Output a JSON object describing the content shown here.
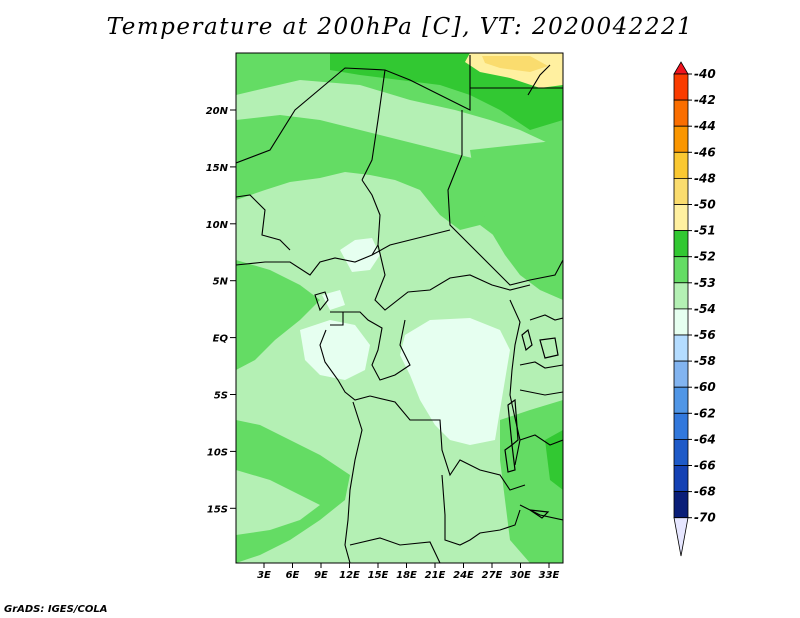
{
  "title": "Temperature at 200hPa [C], VT: 2020042221",
  "credit": "GrADS: IGES/COLA",
  "map": {
    "lat_labels": [
      "20N",
      "15N",
      "10N",
      "5N",
      "EQ",
      "5S",
      "10S",
      "15S"
    ],
    "lon_labels": [
      "3E",
      "6E",
      "9E",
      "12E",
      "15E",
      "18E",
      "21E",
      "24E",
      "27E",
      "30E",
      "33E"
    ]
  },
  "colorbar": {
    "labels": [
      "-40",
      "-42",
      "-44",
      "-46",
      "-48",
      "-50",
      "-51",
      "-52",
      "-53",
      "-54",
      "-56",
      "-58",
      "-60",
      "-62",
      "-64",
      "-66",
      "-68",
      "-70"
    ],
    "colors": [
      "#f0141e",
      "#fa3c00",
      "#fa6e00",
      "#fa9600",
      "#fac832",
      "#fadc6e",
      "#fff0a0",
      "#32c832",
      "#64dc64",
      "#b4f0b4",
      "#e6fff0",
      "#b4dcff",
      "#82b4f0",
      "#5096e6",
      "#3278dc",
      "#1e5ac8",
      "#1441b4",
      "#0a1e78",
      "#e6e6ff"
    ]
  },
  "legend_colors": {
    "t_gt_minus52": "#32c832",
    "t_minus52_to_53": "#64dc64",
    "t_minus53_to_54": "#b4f0b4",
    "t_minus54_to_56": "#e6fff0",
    "t_minus48_to_50": "#fadc6e",
    "t_minus50_to_51": "#fff0a0"
  }
}
